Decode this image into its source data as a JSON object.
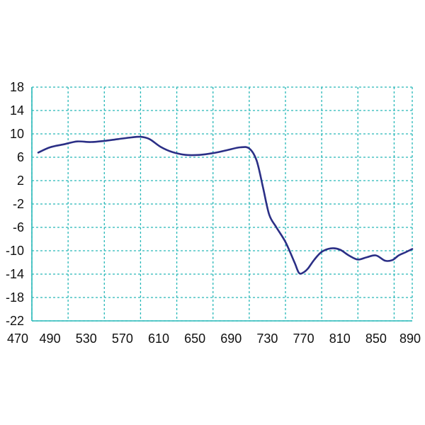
{
  "chart_data": {
    "type": "line",
    "title": "",
    "xlabel": "",
    "ylabel": "",
    "xlim": [
      470,
      890
    ],
    "ylim": [
      -22,
      18
    ],
    "x_ticks": [
      470,
      490,
      530,
      570,
      610,
      650,
      690,
      730,
      770,
      810,
      850,
      890
    ],
    "x_grid": [
      470,
      510,
      550,
      590,
      630,
      670,
      710,
      750,
      790,
      830,
      870,
      890
    ],
    "y_ticks": [
      18,
      14,
      10,
      6,
      2,
      -2,
      -6,
      -10,
      -14,
      -18,
      -22
    ],
    "x_tick_labels": [
      "470",
      "490",
      "530",
      "570",
      "610",
      "650",
      "690",
      "730",
      "770",
      "810",
      "850",
      "890"
    ],
    "y_tick_labels": [
      "18",
      "14",
      "10",
      "6",
      "2",
      "-2",
      "-6",
      "-10",
      "-14",
      "-18",
      "-22"
    ],
    "grid": true,
    "legend": "none",
    "colors": {
      "line": "#2b2f86",
      "grid": "#27b8b8",
      "axis": "#27b8b8"
    },
    "series": [
      {
        "x": [
          477,
          490,
          505,
          520,
          535,
          550,
          565,
          580,
          590,
          600,
          612,
          625,
          640,
          655,
          670,
          685,
          700,
          710,
          718,
          725,
          732,
          740,
          750,
          760,
          765,
          770,
          775,
          782,
          790,
          800,
          810,
          820,
          830,
          840,
          850,
          860,
          868,
          875,
          882,
          890
        ],
        "y": [
          6.8,
          7.7,
          8.2,
          8.7,
          8.6,
          8.8,
          9.1,
          9.4,
          9.5,
          9.1,
          7.8,
          6.9,
          6.4,
          6.4,
          6.7,
          7.2,
          7.7,
          7.5,
          5.5,
          1.0,
          -3.8,
          -6.0,
          -8.5,
          -12.0,
          -13.8,
          -13.7,
          -13.0,
          -11.5,
          -10.2,
          -9.6,
          -9.8,
          -10.8,
          -11.5,
          -11.1,
          -10.8,
          -11.7,
          -11.6,
          -10.8,
          -10.3,
          -9.7
        ]
      }
    ]
  }
}
